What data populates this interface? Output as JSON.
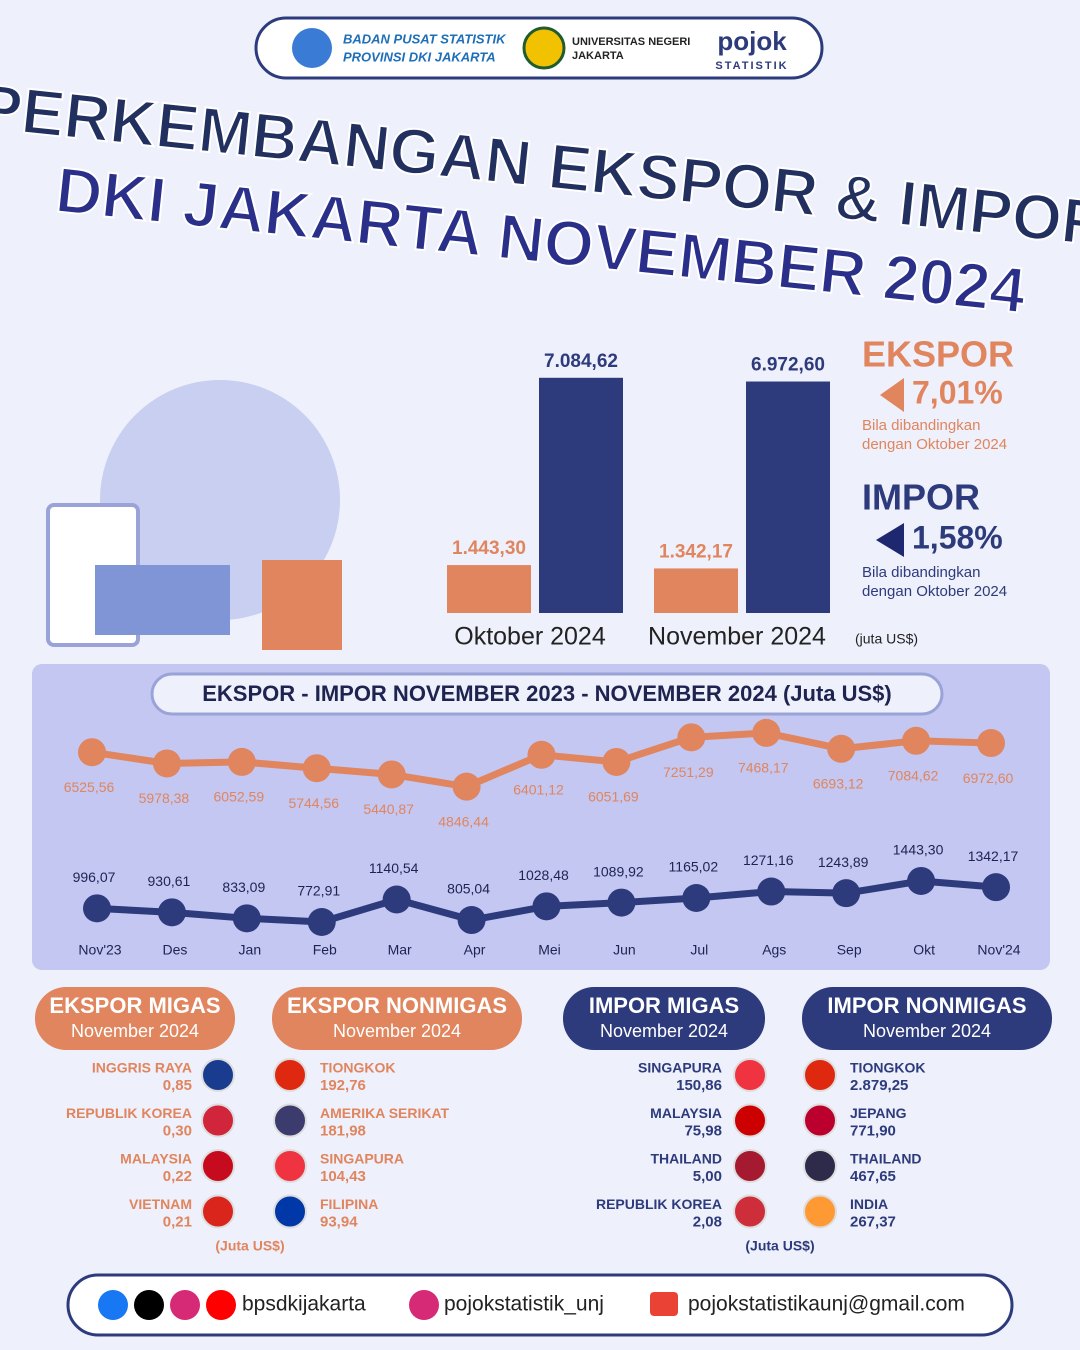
{
  "header": {
    "bps": [
      "BADAN PUSAT STATISTIK",
      "PROVINSI DKI JAKARTA"
    ],
    "unj": [
      "UNIVERSITAS NEGERI",
      "JAKARTA"
    ],
    "pojok": "pojok",
    "pojok_sub": "STATISTIK"
  },
  "title": [
    "PERKEMBANGAN EKSPOR & IMPOR",
    "DKI JAKARTA NOVEMBER 2024"
  ],
  "chart_data": [
    {
      "type": "bar",
      "categories": [
        "Oktober 2024",
        "November 2024"
      ],
      "series": [
        {
          "color": "#e0855e",
          "values": [
            1443.3,
            1342.17
          ],
          "value_labels": [
            "1.443,30",
            "1.342,17"
          ]
        },
        {
          "color": "#2d3b7c",
          "values": [
            7084.62,
            6972.6
          ],
          "value_labels": [
            "7.084,62",
            "6.972,60"
          ]
        }
      ],
      "ylim": [
        0,
        7500
      ],
      "unit": "(juta US$)"
    },
    {
      "type": "line",
      "title": "EKSPOR - IMPOR NOVEMBER 2023 - NOVEMBER 2024 (Juta US$)",
      "categories": [
        "Nov'23",
        "Des",
        "Jan",
        "Feb",
        "Mar",
        "Apr",
        "Mei",
        "Jun",
        "Jul",
        "Ags",
        "Sep",
        "Okt",
        "Nov'24"
      ],
      "series": [
        {
          "color": "#e0855e",
          "values": [
            6525.56,
            5978.38,
            6052.59,
            5744.56,
            5440.87,
            4846.44,
            6401.12,
            6051.69,
            7251.29,
            7468.17,
            6693.12,
            7084.62,
            6972.6
          ],
          "value_labels": [
            "6525,56",
            "5978,38",
            "6052,59",
            "5744,56",
            "5440,87",
            "4846,44",
            "6401,12",
            "6051,69",
            "7251,29",
            "7468,17",
            "6693,12",
            "7084,62",
            "6972,60"
          ]
        },
        {
          "color": "#2d3b7c",
          "axis": "y2",
          "values": [
            996.07,
            930.61,
            833.09,
            772.91,
            1140.54,
            805.04,
            1028.48,
            1089.92,
            1165.02,
            1271.16,
            1243.89,
            1443.3,
            1342.17
          ],
          "value_labels": [
            "996,07",
            "930,61",
            "833,09",
            "772,91",
            "1140,54",
            "805,04",
            "1028,48",
            "1089,92",
            "1165,02",
            "1271,16",
            "1243,89",
            "1443,30",
            "1342,17"
          ]
        }
      ],
      "ylim": [
        4000,
        8000
      ],
      "y2lim": [
        500,
        1500
      ]
    }
  ],
  "summary": [
    {
      "label": "EKSPOR",
      "change": "7,01%",
      "note": [
        "Bila dibandingkan",
        "dengan Oktober 2024"
      ]
    },
    {
      "label": "IMPOR",
      "change": "1,58%",
      "note": [
        "Bila dibandingkan",
        "dengan Oktober 2024"
      ]
    }
  ],
  "partners": [
    {
      "title": "EKSPOR MIGAS",
      "subtitle": "November 2024",
      "items": [
        {
          "country": "INGGRIS RAYA",
          "value": "0,85"
        },
        {
          "country": "REPUBLIK KOREA",
          "value": "0,30"
        },
        {
          "country": "MALAYSIA",
          "value": "0,22"
        },
        {
          "country": "VIETNAM",
          "value": "0,21"
        }
      ]
    },
    {
      "title": "EKSPOR NONMIGAS",
      "subtitle": "November 2024",
      "items": [
        {
          "country": "TIONGKOK",
          "value": "192,76"
        },
        {
          "country": "AMERIKA SERIKAT",
          "value": "181,98"
        },
        {
          "country": "SINGAPURA",
          "value": "104,43"
        },
        {
          "country": "FILIPINA",
          "value": "93,94"
        }
      ]
    },
    {
      "title": "IMPOR MIGAS",
      "subtitle": "November 2024",
      "items": [
        {
          "country": "SINGAPURA",
          "value": "150,86"
        },
        {
          "country": "MALAYSIA",
          "value": "75,98"
        },
        {
          "country": "THAILAND",
          "value": "5,00"
        },
        {
          "country": "REPUBLIK KOREA",
          "value": "2,08"
        }
      ]
    },
    {
      "title": "IMPOR NONMIGAS",
      "subtitle": "November 2024",
      "items": [
        {
          "country": "TIONGKOK",
          "value": "2.879,25"
        },
        {
          "country": "JEPANG",
          "value": "771,90"
        },
        {
          "country": "THAILAND",
          "value": "467,65"
        },
        {
          "country": "INDIA",
          "value": "267,37"
        }
      ]
    }
  ],
  "unit_notes": [
    "(Juta US$)",
    "(Juta US$)"
  ],
  "footer": [
    "bpsdkijakarta",
    "pojokstatistik_unj",
    "pojokstatistikaunj@gmail.com"
  ]
}
